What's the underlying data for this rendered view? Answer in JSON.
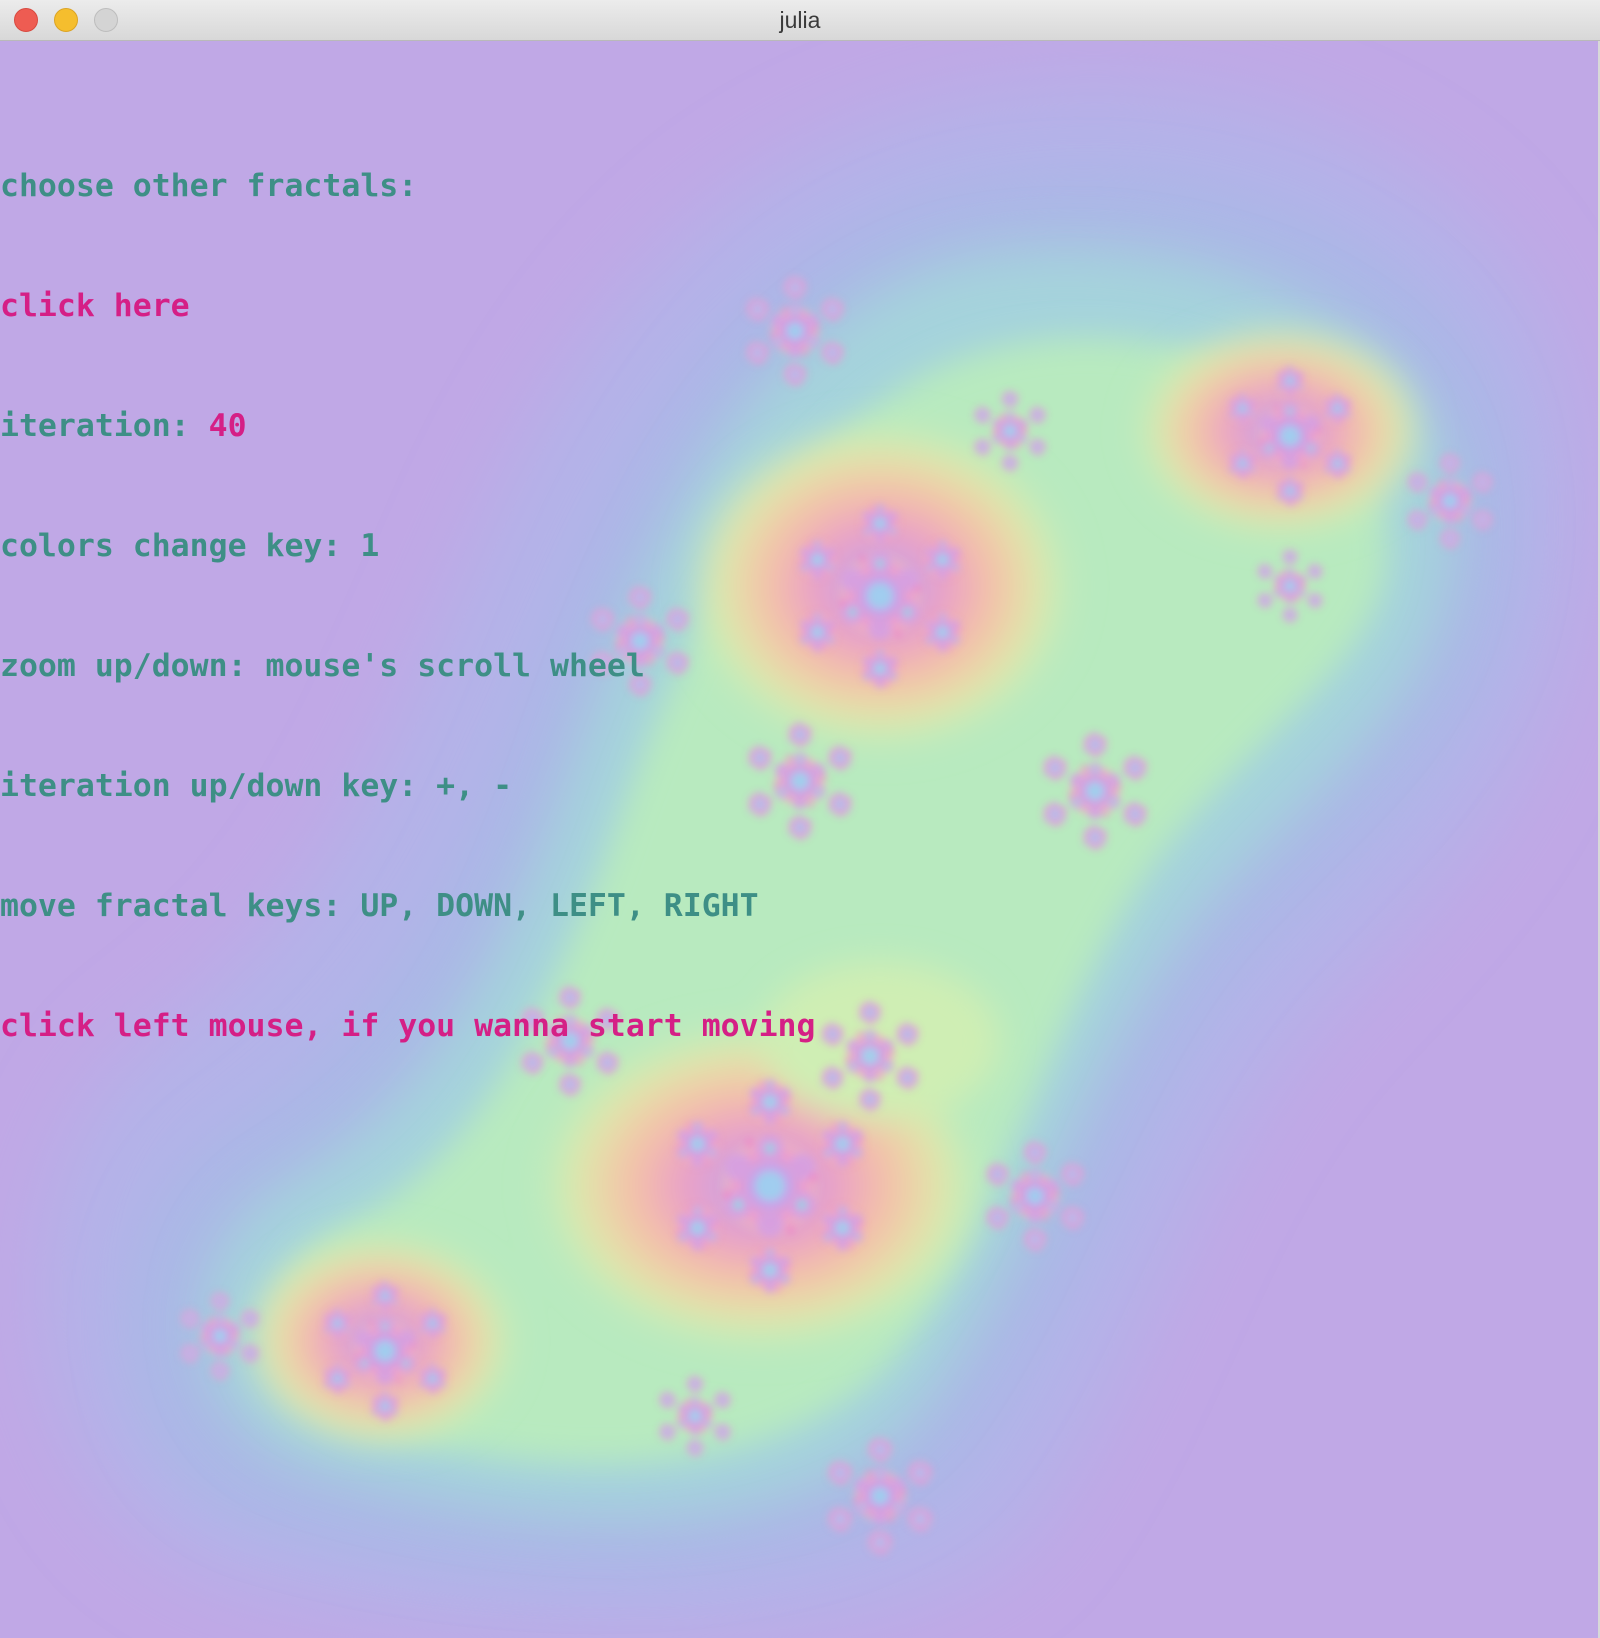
{
  "window": {
    "title": "julia"
  },
  "hud": {
    "choose_label": "choose other fractals:",
    "click_here": "click here",
    "iteration_label": "iteration: ",
    "iteration_value": "40",
    "colors_change": "colors change key: 1",
    "zoom": "zoom up/down: mouse's scroll wheel",
    "iteration_keys": "iteration up/down key: +, -",
    "move_keys": "move fractal keys: UP, DOWN, LEFT, RIGHT",
    "move_mouse": "click left mouse, if you wanna start moving"
  },
  "colors": {
    "text_teal": "#3e8f86",
    "text_pink": "#d51f86",
    "background_lavender": "#c0a8e6"
  }
}
